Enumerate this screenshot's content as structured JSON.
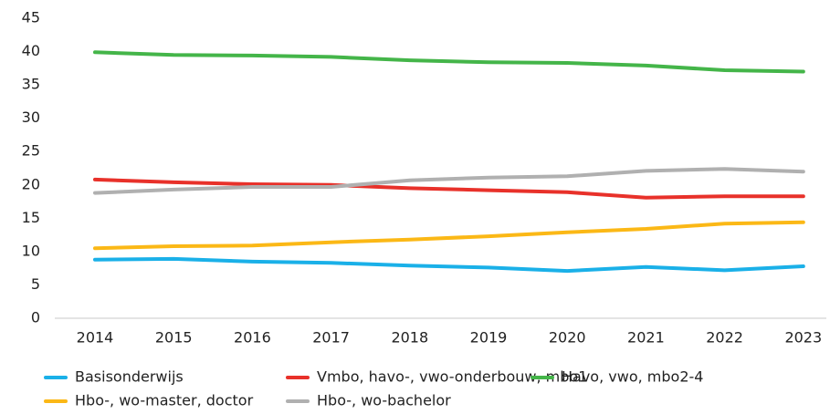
{
  "chart_data": {
    "type": "line",
    "categories": [
      "2014",
      "2015",
      "2016",
      "2017",
      "2018",
      "2019",
      "2020",
      "2021",
      "2022",
      "2023"
    ],
    "series": [
      {
        "name": "Basisonderwijs",
        "color": "#1ab0e8",
        "values": [
          8.8,
          8.9,
          8.5,
          8.3,
          7.9,
          7.6,
          7.1,
          7.7,
          7.2,
          7.8
        ]
      },
      {
        "name": "Vmbo, havo-, vwo-onderbouw, mbo1",
        "color": "#e8312a",
        "values": [
          20.8,
          20.4,
          20.1,
          20.0,
          19.5,
          19.2,
          18.9,
          18.1,
          18.3,
          18.3
        ]
      },
      {
        "name": "Havo, vwo, mbo2-4",
        "color": "#44b549",
        "values": [
          39.9,
          39.5,
          39.4,
          39.2,
          38.7,
          38.4,
          38.3,
          37.9,
          37.2,
          37.0
        ]
      },
      {
        "name": "Hbo-, wo-master, doctor",
        "color": "#fbb816",
        "values": [
          10.5,
          10.8,
          10.9,
          11.4,
          11.8,
          12.3,
          12.9,
          13.4,
          14.2,
          14.4
        ]
      },
      {
        "name": "Hbo-, wo-bachelor",
        "color": "#b0b0b0",
        "values": [
          18.8,
          19.3,
          19.7,
          19.7,
          20.7,
          21.1,
          21.3,
          22.1,
          22.4,
          22.0
        ]
      }
    ],
    "ylim": [
      0,
      45
    ],
    "yticks": [
      0,
      5,
      10,
      15,
      20,
      25,
      30,
      35,
      40,
      45
    ],
    "grid": false
  }
}
